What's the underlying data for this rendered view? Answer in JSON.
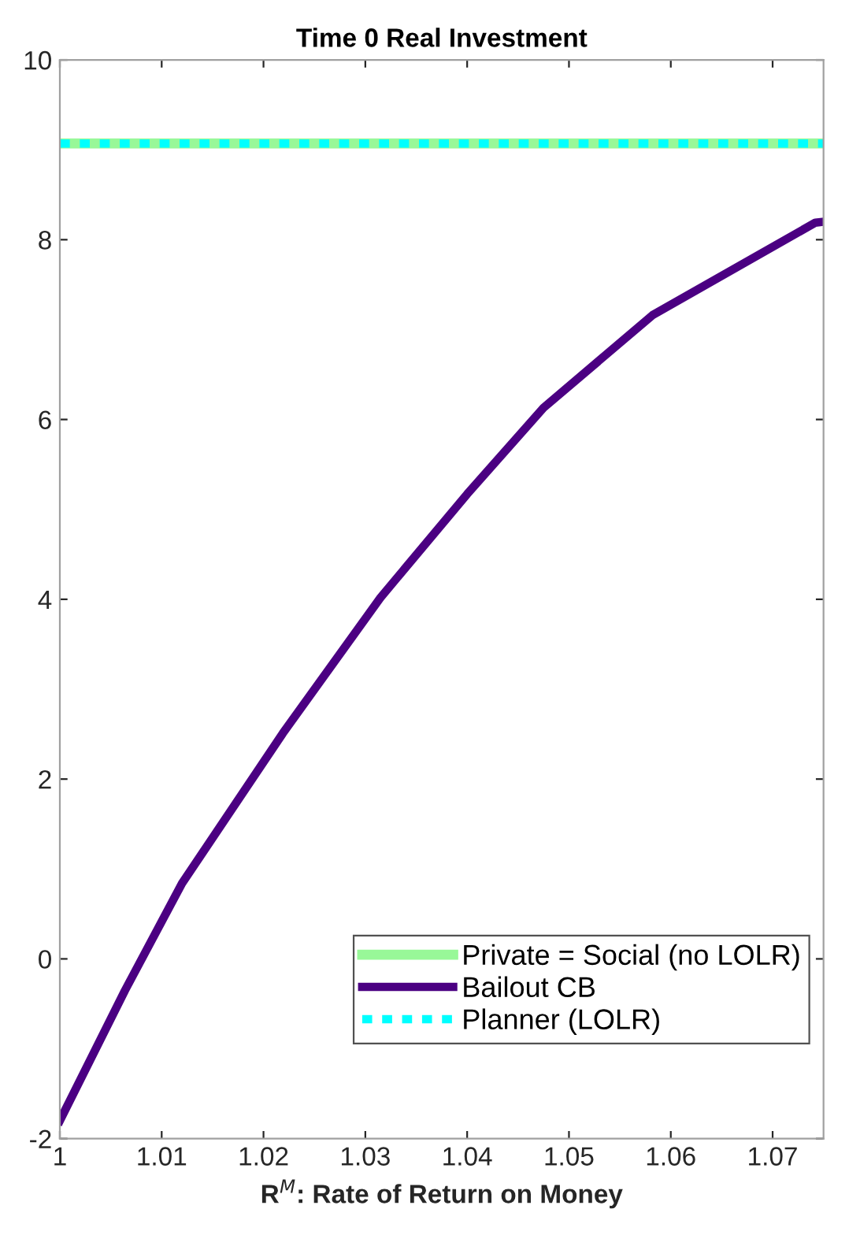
{
  "chart_data": {
    "type": "line",
    "title": "Time 0 Real Investment",
    "xlabel": "R$^{M}$: Rate of Return on Money",
    "xlim": [
      1,
      1.075
    ],
    "xticks": [
      1,
      1.01,
      1.02,
      1.03,
      1.04,
      1.05,
      1.06,
      1.07
    ],
    "ylim": [
      -2,
      10
    ],
    "yticks": [
      -2,
      0,
      2,
      4,
      6,
      8,
      10
    ],
    "grid": false,
    "legend": "bottom right",
    "series": [
      {
        "name": "Private = Social (no LOLR)",
        "color": "#98f898",
        "line_style": "solid",
        "x": [
          1,
          1.075
        ],
        "values": [
          9.07,
          9.07
        ]
      },
      {
        "name": "Bailout CB",
        "color": "#4b0082",
        "line_style": "solid",
        "x": [
          1,
          1.0064,
          1.012,
          1.0219,
          1.0315,
          1.04,
          1.0475,
          1.0582,
          1.0742,
          1.075
        ],
        "values": [
          -1.8,
          -0.35,
          0.84,
          2.51,
          4.02,
          5.17,
          6.13,
          7.16,
          8.19,
          8.2
        ]
      },
      {
        "name": "Planner (LOLR)",
        "color": "#00ffff",
        "line_style": "dotted",
        "x": [
          1,
          1.075
        ],
        "values": [
          9.07,
          9.07
        ]
      }
    ]
  }
}
